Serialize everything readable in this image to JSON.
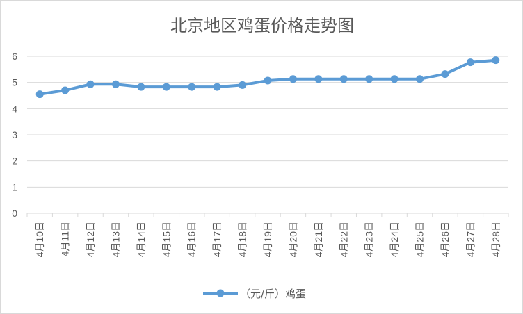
{
  "chart_data": {
    "type": "line",
    "title": "北京地区鸡蛋价格走势图",
    "xlabel": "",
    "ylabel": "",
    "ylim": [
      0,
      6
    ],
    "yticks": [
      "0",
      "1",
      "2",
      "3",
      "4",
      "5",
      "6"
    ],
    "grid": true,
    "legend_position": "bottom",
    "categories": [
      "4月10日",
      "4月11日",
      "4月12日",
      "4月13日",
      "4月14日",
      "4月15日",
      "4月16日",
      "4月17日",
      "4月18日",
      "4月19日",
      "4月20日",
      "4月21日",
      "4月22日",
      "4月23日",
      "4月24日",
      "4月25日",
      "4月26日",
      "4月27日",
      "4月28日"
    ],
    "series": [
      {
        "name": "（元/斤）鸡蛋",
        "color": "#5b9bd5",
        "values": [
          4.55,
          4.7,
          4.93,
          4.93,
          4.83,
          4.83,
          4.83,
          4.83,
          4.9,
          5.07,
          5.13,
          5.13,
          5.13,
          5.13,
          5.13,
          5.13,
          5.32,
          5.77,
          5.85
        ]
      }
    ]
  },
  "colors": {
    "gridline": "#d9d9d9",
    "axis_text": "#595959",
    "series": "#5b9bd5"
  }
}
